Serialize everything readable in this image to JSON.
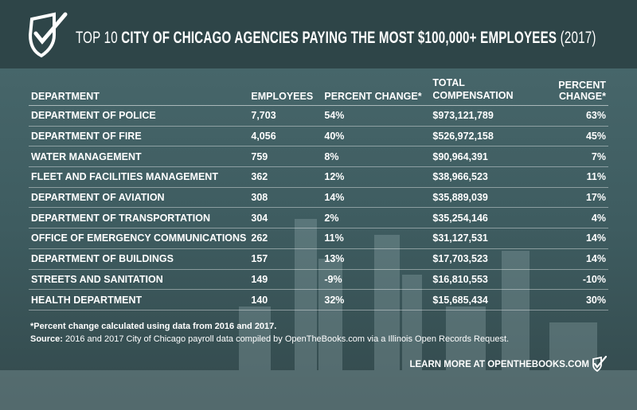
{
  "header": {
    "title_prefix": "TOP 10",
    "title_main": "CITY OF CHICAGO AGENCIES PAYING THE MOST $100,000+ EMPLOYEES",
    "title_suffix": "(2017)"
  },
  "table": {
    "columns": [
      "DEPARTMENT",
      "EMPLOYEES",
      "PERCENT CHANGE*",
      "TOTAL COMPENSATION",
      "PERCENT CHANGE*"
    ],
    "rows": [
      [
        "DEPARTMENT OF POLICE",
        "7,703",
        "54%",
        "$973,121,789",
        "63%"
      ],
      [
        "DEPARTMENT OF FIRE",
        "4,056",
        "40%",
        "$526,972,158",
        "45%"
      ],
      [
        "WATER MANAGEMENT",
        "759",
        "8%",
        "$90,964,391",
        "7%"
      ],
      [
        "FLEET AND FACILITIES MANAGEMENT",
        "362",
        "12%",
        "$38,966,523",
        "11%"
      ],
      [
        "DEPARTMENT OF AVIATION",
        "308",
        "14%",
        "$35,889,039",
        "17%"
      ],
      [
        "DEPARTMENT OF TRANSPORTATION",
        "304",
        "2%",
        "$35,254,146",
        "4%"
      ],
      [
        "OFFICE OF EMERGENCY COMMUNICATIONS",
        "262",
        "11%",
        "$31,127,531",
        "14%"
      ],
      [
        "DEPARTMENT OF BUILDINGS",
        "157",
        "13%",
        "$17,703,523",
        "14%"
      ],
      [
        "STREETS AND SANITATION",
        "149",
        "-9%",
        "$16,810,553",
        "-10%"
      ],
      [
        "HEALTH DEPARTMENT",
        "140",
        "32%",
        "$15,685,434",
        "30%"
      ]
    ]
  },
  "footnote": "*Percent change calculated using data from 2016 and 2017.",
  "source_label": "Source:",
  "source_text": "2016 and 2017 City of Chicago payroll data compiled by OpenTheBooks.com via a Illinois Open Records Request.",
  "cta_prefix": "LEARN MORE AT",
  "cta_link": "OPENTHEBOOKS.COM"
}
